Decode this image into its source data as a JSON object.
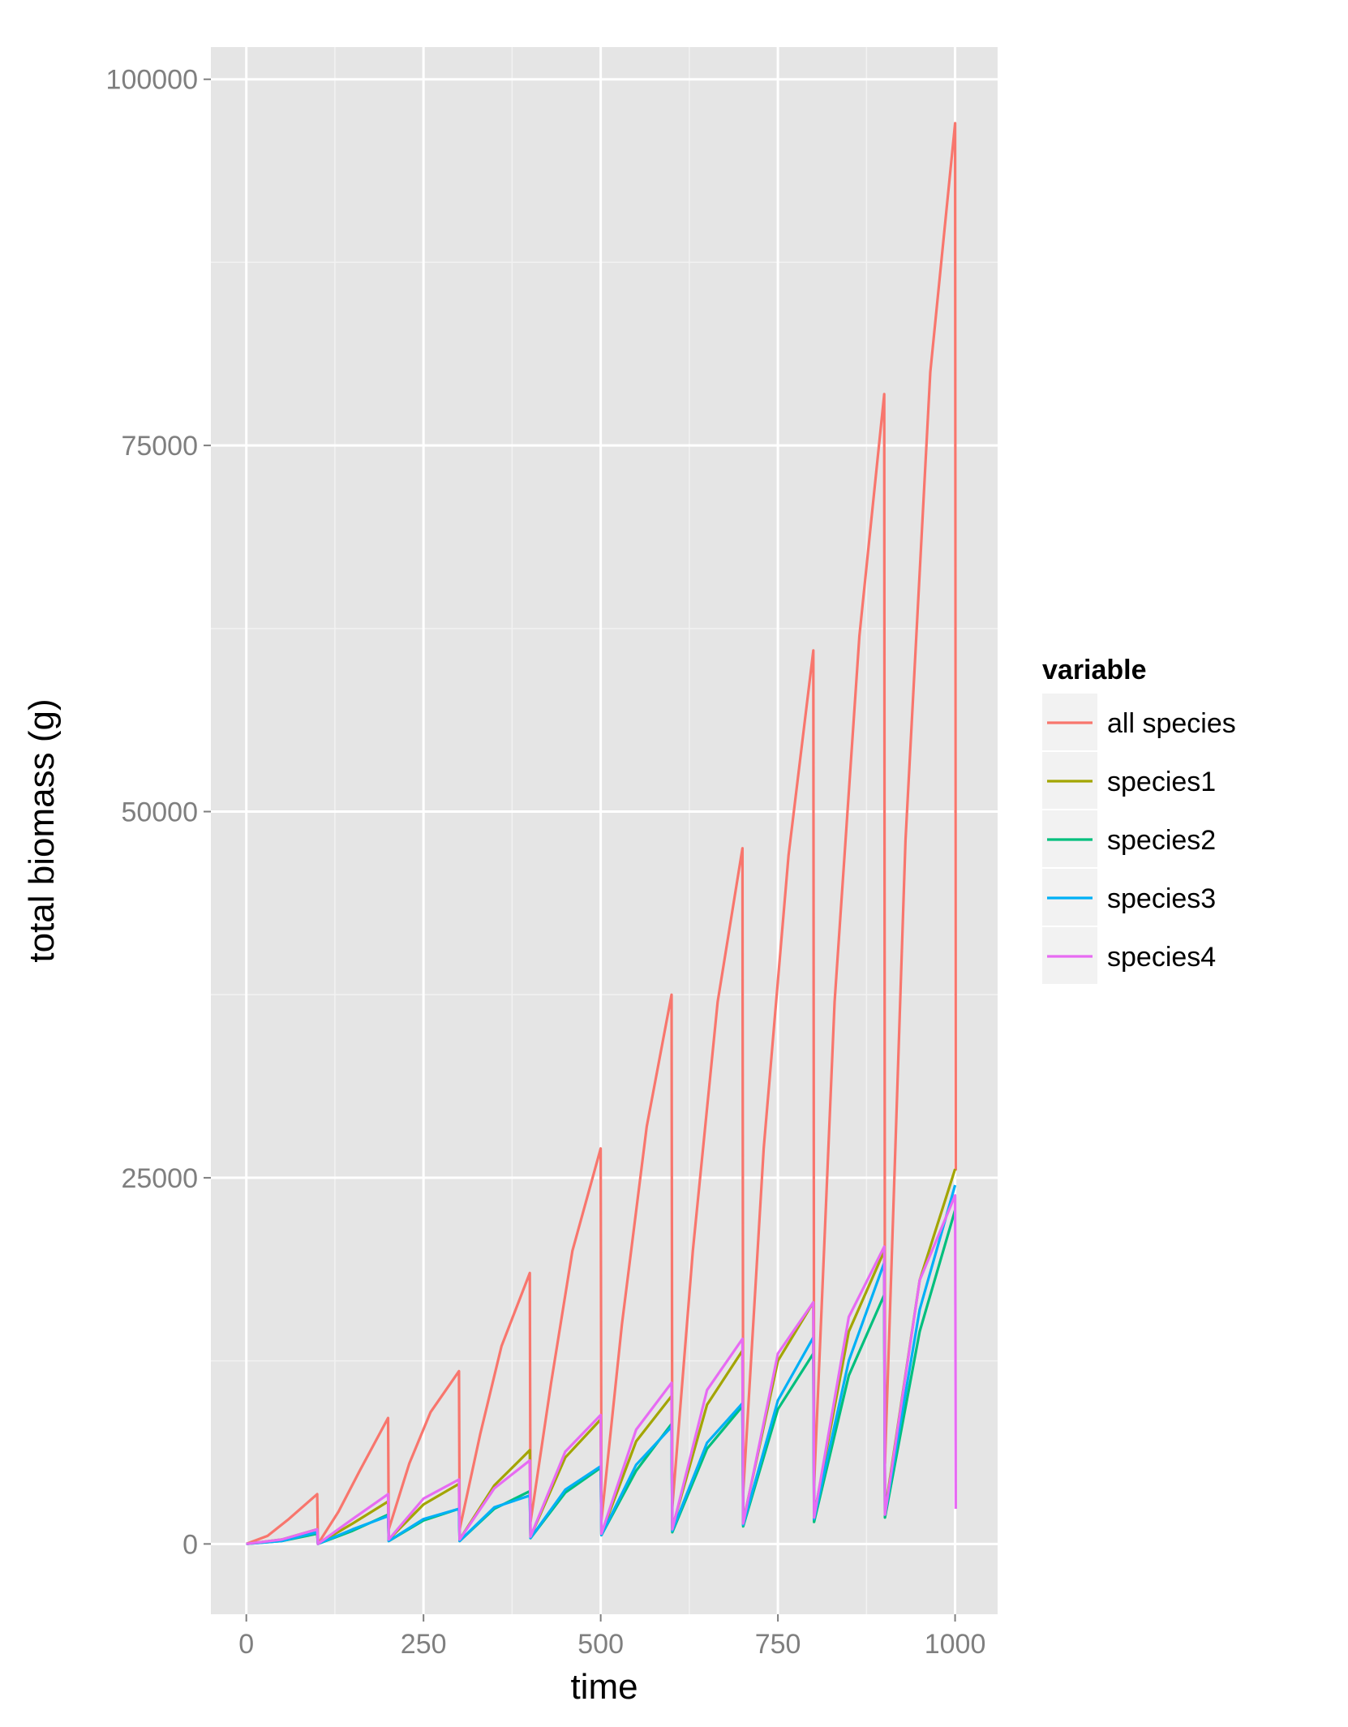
{
  "chart_data": {
    "type": "line",
    "title": "",
    "xlabel": "time",
    "ylabel": "total biomass (g)",
    "xlim": [
      -50,
      1060
    ],
    "ylim": [
      -4800,
      102200
    ],
    "x_ticks": [
      0,
      250,
      500,
      750,
      1000
    ],
    "y_ticks": [
      0,
      25000,
      50000,
      75000,
      100000
    ],
    "x_tick_labels": [
      "0",
      "250",
      "500",
      "750",
      "1000"
    ],
    "y_tick_labels": [
      "0",
      "25000",
      "50000",
      "75000",
      "100000"
    ],
    "grid": true,
    "legend": {
      "title": "variable",
      "position": "right"
    },
    "series": [
      {
        "name": "all species",
        "color": "#F8766D",
        "points": [
          [
            0,
            0
          ],
          [
            30,
            550
          ],
          [
            60,
            1700
          ],
          [
            100,
            3400
          ],
          [
            101,
            0
          ],
          [
            130,
            2200
          ],
          [
            160,
            5000
          ],
          [
            200,
            8600
          ],
          [
            201,
            1000
          ],
          [
            230,
            5500
          ],
          [
            260,
            9000
          ],
          [
            300,
            11800
          ],
          [
            301,
            1000
          ],
          [
            330,
            7500
          ],
          [
            360,
            13500
          ],
          [
            400,
            18500
          ],
          [
            401,
            1500
          ],
          [
            430,
            11000
          ],
          [
            460,
            20000
          ],
          [
            500,
            27000
          ],
          [
            501,
            1600
          ],
          [
            530,
            15000
          ],
          [
            565,
            28500
          ],
          [
            600,
            37500
          ],
          [
            601,
            2500
          ],
          [
            630,
            20000
          ],
          [
            665,
            37000
          ],
          [
            700,
            47500
          ],
          [
            701,
            3500
          ],
          [
            730,
            27000
          ],
          [
            765,
            47000
          ],
          [
            800,
            61000
          ],
          [
            801,
            4000
          ],
          [
            830,
            37000
          ],
          [
            865,
            62000
          ],
          [
            900,
            78500
          ],
          [
            901,
            5500
          ],
          [
            930,
            48000
          ],
          [
            965,
            80000
          ],
          [
            1000,
            97000
          ],
          [
            1001,
            25500
          ]
        ]
      },
      {
        "name": "species1",
        "color": "#A3A500",
        "points": [
          [
            0,
            0
          ],
          [
            50,
            300
          ],
          [
            100,
            1000
          ],
          [
            101,
            0
          ],
          [
            150,
            1400
          ],
          [
            200,
            2900
          ],
          [
            201,
            300
          ],
          [
            250,
            2700
          ],
          [
            300,
            4100
          ],
          [
            301,
            300
          ],
          [
            350,
            4000
          ],
          [
            400,
            6400
          ],
          [
            401,
            500
          ],
          [
            450,
            5900
          ],
          [
            500,
            8500
          ],
          [
            501,
            700
          ],
          [
            550,
            7000
          ],
          [
            600,
            10100
          ],
          [
            601,
            1100
          ],
          [
            650,
            9500
          ],
          [
            700,
            13200
          ],
          [
            701,
            1500
          ],
          [
            750,
            12500
          ],
          [
            800,
            16500
          ],
          [
            801,
            1900
          ],
          [
            850,
            14500
          ],
          [
            900,
            20000
          ],
          [
            901,
            2200
          ],
          [
            950,
            18000
          ],
          [
            1000,
            25600
          ]
        ]
      },
      {
        "name": "species2",
        "color": "#00BF7D",
        "points": [
          [
            0,
            0
          ],
          [
            50,
            200
          ],
          [
            100,
            700
          ],
          [
            101,
            0
          ],
          [
            150,
            900
          ],
          [
            200,
            2000
          ],
          [
            201,
            200
          ],
          [
            250,
            1600
          ],
          [
            300,
            2400
          ],
          [
            301,
            200
          ],
          [
            350,
            2400
          ],
          [
            400,
            3600
          ],
          [
            401,
            400
          ],
          [
            450,
            3500
          ],
          [
            500,
            5200
          ],
          [
            501,
            600
          ],
          [
            550,
            5000
          ],
          [
            600,
            8200
          ],
          [
            601,
            800
          ],
          [
            650,
            6500
          ],
          [
            700,
            9400
          ],
          [
            701,
            1200
          ],
          [
            750,
            9200
          ],
          [
            800,
            13000
          ],
          [
            801,
            1500
          ],
          [
            850,
            11500
          ],
          [
            900,
            17000
          ],
          [
            901,
            1800
          ],
          [
            950,
            14500
          ],
          [
            1000,
            22800
          ]
        ]
      },
      {
        "name": "species3",
        "color": "#00B0F6",
        "points": [
          [
            0,
            0
          ],
          [
            50,
            200
          ],
          [
            100,
            800
          ],
          [
            101,
            0
          ],
          [
            150,
            1000
          ],
          [
            200,
            1900
          ],
          [
            201,
            200
          ],
          [
            250,
            1700
          ],
          [
            300,
            2400
          ],
          [
            301,
            200
          ],
          [
            350,
            2500
          ],
          [
            400,
            3300
          ],
          [
            401,
            400
          ],
          [
            450,
            3700
          ],
          [
            500,
            5300
          ],
          [
            501,
            600
          ],
          [
            550,
            5400
          ],
          [
            600,
            8000
          ],
          [
            601,
            900
          ],
          [
            650,
            6900
          ],
          [
            700,
            9600
          ],
          [
            701,
            1300
          ],
          [
            750,
            9800
          ],
          [
            800,
            14100
          ],
          [
            801,
            1700
          ],
          [
            850,
            12500
          ],
          [
            900,
            19200
          ],
          [
            901,
            2000
          ],
          [
            950,
            16000
          ],
          [
            1000,
            24500
          ]
        ]
      },
      {
        "name": "species4",
        "color": "#E76BF3",
        "points": [
          [
            0,
            0
          ],
          [
            50,
            300
          ],
          [
            100,
            1000
          ],
          [
            101,
            0
          ],
          [
            150,
            1700
          ],
          [
            200,
            3400
          ],
          [
            201,
            300
          ],
          [
            250,
            3100
          ],
          [
            300,
            4400
          ],
          [
            301,
            300
          ],
          [
            350,
            3800
          ],
          [
            400,
            5700
          ],
          [
            401,
            500
          ],
          [
            450,
            6300
          ],
          [
            500,
            8800
          ],
          [
            501,
            700
          ],
          [
            550,
            7800
          ],
          [
            600,
            11000
          ],
          [
            601,
            1000
          ],
          [
            650,
            10500
          ],
          [
            700,
            14000
          ],
          [
            701,
            1400
          ],
          [
            750,
            13000
          ],
          [
            800,
            16500
          ],
          [
            801,
            1800
          ],
          [
            850,
            15500
          ],
          [
            900,
            20300
          ],
          [
            901,
            2000
          ],
          [
            950,
            18000
          ],
          [
            1000,
            23800
          ],
          [
            1001,
            2400
          ]
        ]
      }
    ]
  }
}
